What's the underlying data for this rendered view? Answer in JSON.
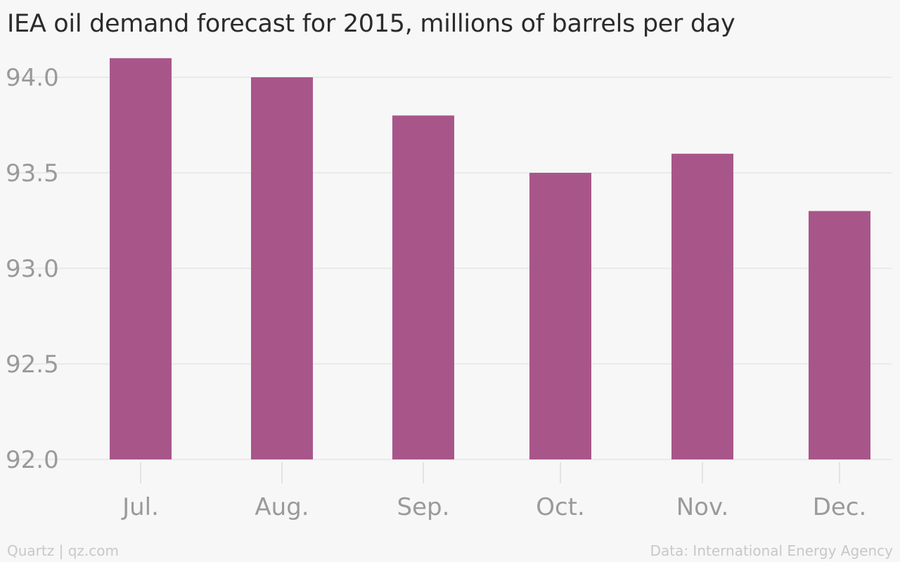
{
  "chart_data": {
    "type": "bar",
    "title": "IEA oil demand forecast for 2015, millions of barrels per day",
    "categories": [
      "Jul.",
      "Aug.",
      "Sep.",
      "Oct.",
      "Nov.",
      "Dec."
    ],
    "values": [
      94.1,
      94.0,
      93.8,
      93.5,
      93.6,
      93.3
    ],
    "ylim": [
      92.0,
      94.0
    ],
    "yticks": [
      "92.0",
      "92.5",
      "93.0",
      "93.5",
      "94.0"
    ],
    "xlabel": "",
    "ylabel": "",
    "grid": true,
    "bar_color": "#a8568a"
  },
  "footer": {
    "credit": "Quartz | qz.com",
    "source": "Data: International Energy Agency"
  }
}
